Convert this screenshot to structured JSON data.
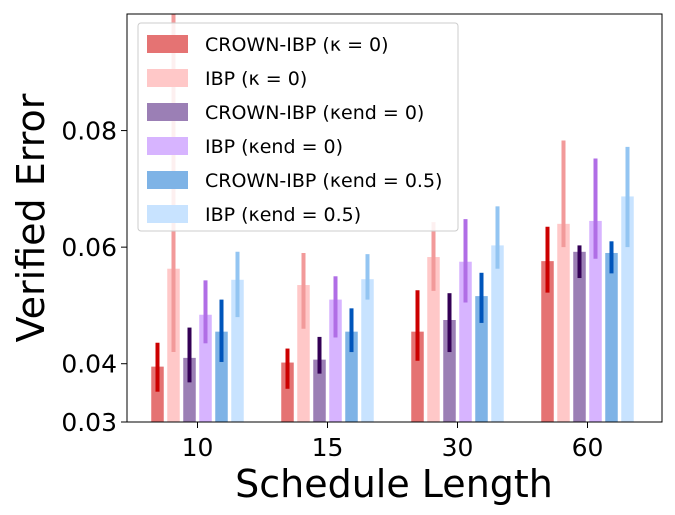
{
  "chart_data": {
    "type": "bar",
    "xlabel": "Schedule Length",
    "ylabel": "Verified Error",
    "ylim": [
      0.03,
      0.1
    ],
    "y_ticks": [
      {
        "value": 0.03,
        "label": "0.03"
      },
      {
        "value": 0.04,
        "label": "0.04"
      },
      {
        "value": 0.06,
        "label": "0.06"
      },
      {
        "value": 0.08,
        "label": "0.08"
      }
    ],
    "categories": [
      "10",
      "15",
      "30",
      "60"
    ],
    "legend_position": "top-left",
    "series": [
      {
        "name": "CROWN-IBP",
        "param": "(κ = 0)",
        "color": "#e57373",
        "err_color": "#cc0000",
        "values": [
          0.0395,
          0.0402,
          0.0455,
          0.0576
        ],
        "err_low": [
          0.0352,
          0.0357,
          0.0405,
          0.0522
        ],
        "err_high": [
          0.0436,
          0.0426,
          0.0526,
          0.0635
        ]
      },
      {
        "name": "IBP",
        "param": "(κ = 0)",
        "color": "#ffc8c8",
        "err_color": "#f29a9a",
        "values": [
          0.0563,
          0.0535,
          0.0583,
          0.064
        ],
        "err_low": [
          0.042,
          0.046,
          0.0525,
          0.06
        ],
        "err_high": [
          0.1,
          0.059,
          0.0643,
          0.0783
        ]
      },
      {
        "name": "CROWN-IBP",
        "param": "(κend = 0)",
        "color": "#9b7fb5",
        "err_color": "#330055",
        "values": [
          0.041,
          0.0407,
          0.0475,
          0.0592
        ],
        "err_low": [
          0.0368,
          0.0383,
          0.042,
          0.0547
        ],
        "err_high": [
          0.0462,
          0.0446,
          0.0521,
          0.0603
        ]
      },
      {
        "name": "IBP",
        "param": "(κend = 0)",
        "color": "#d7b4ff",
        "err_color": "#b06ee6",
        "values": [
          0.0484,
          0.051,
          0.0575,
          0.0645
        ],
        "err_low": [
          0.0435,
          0.0445,
          0.0505,
          0.058
        ],
        "err_high": [
          0.0543,
          0.055,
          0.0648,
          0.0752
        ]
      },
      {
        "name": "CROWN-IBP",
        "param": "(κend = 0.5)",
        "color": "#7eb3e6",
        "err_color": "#0055bb",
        "values": [
          0.0455,
          0.0455,
          0.0516,
          0.059
        ],
        "err_low": [
          0.0403,
          0.042,
          0.047,
          0.0555
        ],
        "err_high": [
          0.051,
          0.0495,
          0.0556,
          0.061
        ]
      },
      {
        "name": "IBP",
        "param": "(κend = 0.5)",
        "color": "#c8e3ff",
        "err_color": "#93c5f2",
        "values": [
          0.0544,
          0.0545,
          0.0603,
          0.0687
        ],
        "err_low": [
          0.048,
          0.051,
          0.0563,
          0.06
        ],
        "err_high": [
          0.0592,
          0.0588,
          0.067,
          0.0772
        ]
      }
    ]
  }
}
